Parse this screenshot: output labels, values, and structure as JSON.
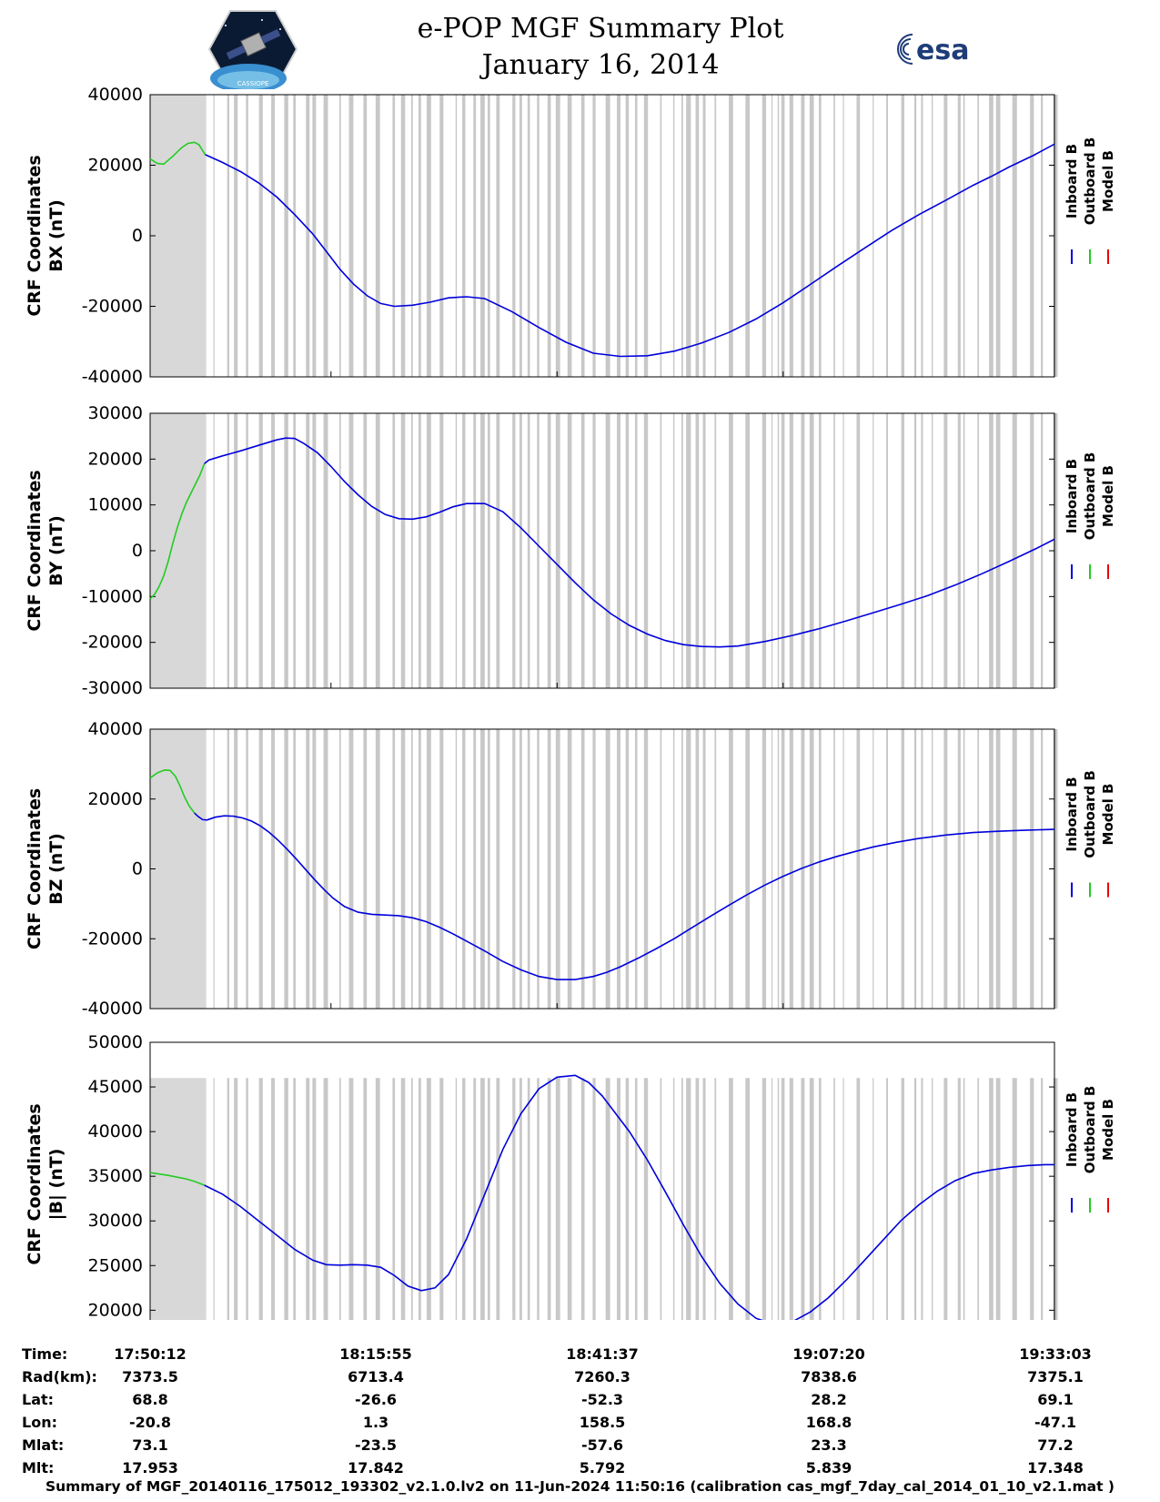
{
  "header": {
    "title_line1": "e-POP MGF Summary Plot",
    "title_line2": "January 16, 2014",
    "logo_left_text": "CASSIOPE",
    "logo_right_text": "esa"
  },
  "colors": {
    "inboard": "#0000dd",
    "outboard": "#22cc22",
    "model": "#ee0000",
    "coverage": "#d8d8d8",
    "coverage_line": "#c8c8c8"
  },
  "chart_data": [
    {
      "id": "bx",
      "type": "line",
      "ylabel_line1": "CRF Coordinates",
      "ylabel_line2": "BX (nT)",
      "ylim": [
        -40000,
        40000
      ],
      "yticks": [
        40000,
        20000,
        0,
        -20000,
        -40000
      ],
      "ytick_labels": [
        "40000",
        "20000",
        "0",
        "-20000",
        "-40000"
      ],
      "coverage_top": 40000,
      "legend": [
        "Inboard B",
        "Outboard B",
        "Model B"
      ],
      "series": [
        {
          "name": "Outboard B",
          "x": [
            0,
            0.8,
            1.5,
            2.5,
            3.5,
            4.2,
            4.9,
            5.4,
            6.1
          ],
          "y": [
            21800,
            20500,
            20300,
            22500,
            25000,
            26200,
            26500,
            25800,
            23000
          ]
        },
        {
          "name": "Inboard B",
          "x": [
            6.1,
            8,
            10,
            12,
            14,
            16,
            18,
            19.5,
            21,
            22.5,
            24,
            25.5,
            27,
            29,
            31,
            33,
            35,
            37,
            40,
            43,
            46,
            49,
            52,
            55,
            58,
            61,
            64,
            67,
            70,
            73,
            76,
            79,
            82,
            85,
            88,
            91,
            93,
            95,
            97.7,
            100
          ],
          "y": [
            23000,
            20800,
            18200,
            15000,
            11000,
            6000,
            500,
            -4500,
            -9500,
            -13700,
            -17000,
            -19200,
            -20000,
            -19700,
            -18800,
            -17600,
            -17300,
            -17800,
            -21500,
            -26000,
            -30200,
            -33300,
            -34200,
            -34000,
            -32700,
            -30400,
            -27400,
            -23600,
            -19000,
            -13800,
            -8600,
            -3500,
            1500,
            6000,
            10100,
            14300,
            16800,
            19500,
            22800,
            26000
          ]
        }
      ]
    },
    {
      "id": "by",
      "type": "line",
      "ylabel_line1": "CRF Coordinates",
      "ylabel_line2": "BY (nT)",
      "ylim": [
        -30000,
        30000
      ],
      "yticks": [
        30000,
        20000,
        10000,
        0,
        -10000,
        -20000,
        -30000
      ],
      "ytick_labels": [
        "30000",
        "20000",
        "10000",
        "0",
        "-10000",
        "-20000",
        "-30000"
      ],
      "coverage_top": 30000,
      "legend": [
        "Inboard B",
        "Outboard B",
        "Model B"
      ],
      "series": [
        {
          "name": "Outboard B",
          "x": [
            0,
            0.5,
            1,
            1.5,
            2,
            2.5,
            3,
            3.5,
            4,
            4.5,
            5,
            5.5,
            6
          ],
          "y": [
            -10500,
            -9500,
            -7800,
            -5500,
            -2300,
            1500,
            5000,
            8000,
            10500,
            12500,
            14500,
            16500,
            19000
          ]
        },
        {
          "name": "Inboard B",
          "x": [
            6,
            6.5,
            8,
            10,
            12,
            14,
            15,
            16,
            17,
            18.5,
            20,
            21.5,
            23,
            24.5,
            26,
            27.5,
            29,
            30.5,
            32,
            33.5,
            35,
            37,
            39,
            41,
            43,
            45,
            47,
            49,
            51,
            53,
            55,
            57,
            59,
            61,
            63,
            65,
            68,
            71,
            74,
            77,
            80,
            83,
            86,
            89,
            92,
            95,
            98,
            100
          ],
          "y": [
            19000,
            19800,
            20700,
            21800,
            23000,
            24200,
            24600,
            24500,
            23400,
            21400,
            18400,
            15100,
            12200,
            9700,
            7900,
            7000,
            6900,
            7400,
            8400,
            9600,
            10300,
            10300,
            8500,
            5000,
            1000,
            -3000,
            -7000,
            -10700,
            -13800,
            -16300,
            -18200,
            -19600,
            -20500,
            -20900,
            -21000,
            -20800,
            -19800,
            -18500,
            -17000,
            -15300,
            -13500,
            -11700,
            -9800,
            -7500,
            -5000,
            -2300,
            500,
            2500
          ]
        }
      ]
    },
    {
      "id": "bz",
      "type": "line",
      "ylabel_line1": "CRF Coordinates",
      "ylabel_line2": "BZ (nT)",
      "ylim": [
        -40000,
        40000
      ],
      "yticks": [
        40000,
        20000,
        0,
        -20000,
        -40000
      ],
      "ytick_labels": [
        "40000",
        "20000",
        "0",
        "-20000",
        "-40000"
      ],
      "coverage_top": 40000,
      "legend": [
        "Inboard B",
        "Outboard B",
        "Model B"
      ],
      "series": [
        {
          "name": "Outboard B",
          "x": [
            0,
            0.8,
            1.6,
            2.2,
            2.8,
            3.3,
            3.8,
            4.3,
            4.9
          ],
          "y": [
            26000,
            27500,
            28300,
            28200,
            26500,
            23800,
            20600,
            18100,
            16000
          ]
        },
        {
          "name": "Inboard B",
          "x": [
            4.9,
            5.3,
            5.8,
            6.3,
            7.2,
            8.2,
            9.2,
            10.2,
            11.2,
            12.2,
            13.2,
            14.2,
            15.2,
            16.2,
            17.2,
            18.2,
            19.2,
            20.2,
            21.5,
            23,
            24.5,
            26,
            27.5,
            29,
            30.5,
            32,
            33.5,
            35,
            37,
            39,
            41,
            43,
            45,
            47,
            49,
            50.5,
            52,
            54,
            56,
            58,
            60,
            62,
            64,
            66,
            68,
            70,
            72,
            74,
            76,
            78,
            80,
            82.5,
            85,
            88,
            91,
            94,
            97,
            100
          ],
          "y": [
            16000,
            15000,
            14100,
            14000,
            14800,
            15200,
            15100,
            14600,
            13700,
            12300,
            10400,
            8100,
            5500,
            2700,
            -200,
            -3100,
            -5800,
            -8300,
            -10800,
            -12400,
            -13000,
            -13200,
            -13400,
            -14000,
            -15100,
            -16700,
            -18600,
            -20700,
            -23500,
            -26500,
            -28900,
            -30800,
            -31700,
            -31700,
            -30800,
            -29600,
            -28000,
            -25500,
            -22800,
            -19900,
            -16700,
            -13500,
            -10400,
            -7400,
            -4600,
            -2100,
            100,
            2000,
            3600,
            5000,
            6300,
            7600,
            8700,
            9700,
            10400,
            10800,
            11100,
            11300
          ]
        }
      ]
    },
    {
      "id": "bmag",
      "type": "line",
      "ylabel_line1": "CRF Coordinates",
      "ylabel_line2": "|B| (nT)",
      "ylim": [
        18200,
        50000
      ],
      "yticks": [
        50000,
        45000,
        40000,
        35000,
        30000,
        25000,
        20000
      ],
      "ytick_labels": [
        "50000",
        "45000",
        "40000",
        "35000",
        "30000",
        "25000",
        "20000"
      ],
      "coverage_top": 46000,
      "legend": [
        "Inboard B",
        "Outboard B",
        "Model B"
      ],
      "series": [
        {
          "name": "Outboard B",
          "x": [
            0,
            1,
            2,
            3,
            4,
            5,
            6
          ],
          "y": [
            35400,
            35250,
            35100,
            34900,
            34700,
            34400,
            34000
          ]
        },
        {
          "name": "Inboard B",
          "x": [
            6,
            8,
            10,
            12,
            14,
            16,
            18,
            19.5,
            21,
            22.5,
            24,
            25.5,
            27,
            28.5,
            30,
            31.5,
            33,
            35,
            37,
            39,
            41,
            43,
            45,
            47,
            48.5,
            50,
            51.5,
            53,
            55,
            57,
            59,
            61,
            63,
            65,
            67,
            69,
            71,
            73,
            75,
            77,
            79,
            81,
            83,
            85,
            87,
            89,
            91,
            93,
            95,
            97,
            99,
            100
          ],
          "y": [
            34000,
            33000,
            31600,
            30000,
            28400,
            26800,
            25600,
            25100,
            25050,
            25100,
            25050,
            24800,
            23900,
            22700,
            22200,
            22500,
            24000,
            28000,
            33000,
            38000,
            42000,
            44800,
            46100,
            46300,
            45500,
            44000,
            42000,
            40000,
            36800,
            33200,
            29500,
            26000,
            23000,
            20700,
            19100,
            18400,
            18700,
            19800,
            21400,
            23400,
            25600,
            27800,
            30000,
            31800,
            33300,
            34500,
            35300,
            35700,
            36000,
            36200,
            36300,
            36300
          ]
        }
      ]
    }
  ],
  "table": {
    "rows": [
      {
        "label": "Time:",
        "values": [
          "17:50:12",
          "18:15:55",
          "18:41:37",
          "19:07:20",
          "19:33:03"
        ]
      },
      {
        "label": "Rad(km):",
        "values": [
          "7373.5",
          "6713.4",
          "7260.3",
          "7838.6",
          "7375.1"
        ]
      },
      {
        "label": "Lat:",
        "values": [
          "68.8",
          "-26.6",
          "-52.3",
          "28.2",
          "69.1"
        ]
      },
      {
        "label": "Lon:",
        "values": [
          "-20.8",
          "1.3",
          "158.5",
          "168.8",
          "-47.1"
        ]
      },
      {
        "label": "Mlat:",
        "values": [
          "73.1",
          "-23.5",
          "-57.6",
          "23.3",
          "77.2"
        ]
      },
      {
        "label": "Mlt:",
        "values": [
          "17.953",
          "17.842",
          "5.792",
          "5.839",
          "17.348"
        ]
      }
    ]
  },
  "footer": {
    "text": "Summary of MGF_20140116_175012_193302_v2.1.0.lv2 on 11-Jun-2024 11:50:16 (calibration cas_mgf_7day_cal_2014_01_10_v2.1.mat )"
  }
}
